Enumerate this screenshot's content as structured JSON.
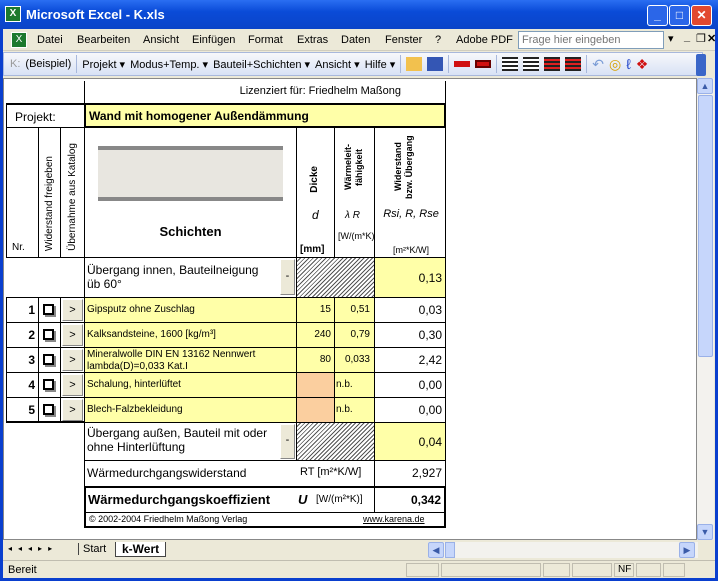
{
  "window": {
    "title": "Microsoft Excel - K.xls"
  },
  "menu": {
    "items": [
      "Datei",
      "Bearbeiten",
      "Ansicht",
      "Einfügen",
      "Format",
      "Extras",
      "Daten",
      "Fenster",
      "?",
      "Adobe PDF"
    ],
    "help_placeholder": "Frage hier eingeben"
  },
  "toolbar": {
    "k_label": "K:",
    "items": [
      "(Beispiel)",
      "Projekt ▾",
      "Modus+Temp. ▾",
      "Bauteil+Schichten ▾",
      "Ansicht ▾",
      "Hilfe ▾"
    ]
  },
  "sheet": {
    "license": "Lizenziert für:  Friedhelm Maßong",
    "project_label": "Projekt:",
    "project_name": "Wand mit homogener Außendämmung",
    "headers": {
      "nr": "Nr.",
      "widerstand": "Widerstand freigeben",
      "uebernahme": "Übernahme aus Katalog",
      "schichten": "Schichten",
      "dicke": "Dicke",
      "dicke_sym": "d",
      "dicke_unit": "[mm]",
      "lambda": "Wärmeleit-fähigkeit",
      "lambda_sym": "λ R",
      "lambda_unit": "[W/(m*K)]",
      "r": "Widerstand bzw. Übergang",
      "r_sym": "Rsi, R, Rse",
      "r_unit": "[m²*K/W]"
    },
    "inner": {
      "label": "Übergang innen, Bauteilneigung üb 60°",
      "value": "0,13",
      "button": "-"
    },
    "rows": [
      {
        "nr": "1",
        "name": "Gipsputz ohne Zuschlag",
        "d": "15",
        "lambda": "0,51",
        "r": "0,03"
      },
      {
        "nr": "2",
        "name": "Kalksandsteine, 1600 [kg/m³]",
        "d": "240",
        "lambda": "0,79",
        "r": "0,30"
      },
      {
        "nr": "3",
        "name": "Mineralwolle DIN EN 13162 Nennwert lambda(D)=0,033 Kat.I",
        "d": "80",
        "lambda": "0,033",
        "r": "2,42"
      },
      {
        "nr": "4",
        "name": "Schalung, hinterlüftet",
        "d": "",
        "lambda": "n.b.",
        "r": "0,00"
      },
      {
        "nr": "5",
        "name": "Blech-Falzbekleidung",
        "d": "",
        "lambda": "n.b.",
        "r": "0,00"
      }
    ],
    "arrow": ">",
    "outer": {
      "label": "Übergang außen, Bauteil mit oder ohne Hinterlüftung",
      "value": "0,04",
      "button": "-"
    },
    "rt": {
      "label": "Wärmedurchgangswiderstand",
      "sym": "RT [m²*K/W]",
      "value": "2,927"
    },
    "u": {
      "label": "Wärmedurchgangskoeffizient",
      "sym": "U",
      "unit": "[W/(m²*K)]",
      "value": "0,342"
    },
    "copyright": "© 2002-2004 Friedhelm Maßong Verlag",
    "link": "www.karena.de"
  },
  "tabs": [
    "Start",
    "k-Wert"
  ],
  "active_tab": "k-Wert",
  "status": {
    "text": "Bereit",
    "nf": "NF"
  }
}
